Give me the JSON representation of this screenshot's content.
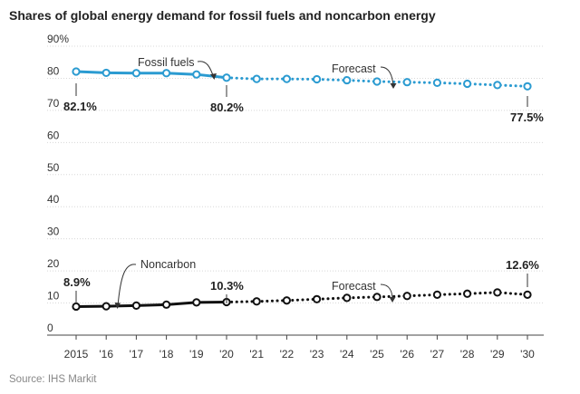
{
  "title": "Shares of global energy demand for fossil fuels and noncarbon energy",
  "source": "Source: IHS Markit",
  "chart_data": {
    "type": "line",
    "x": [
      2015,
      2016,
      2017,
      2018,
      2019,
      2020,
      2021,
      2022,
      2023,
      2024,
      2025,
      2026,
      2027,
      2028,
      2029,
      2030
    ],
    "xtick_labels": [
      "2015",
      "'16",
      "'17",
      "'18",
      "'19",
      "'20",
      "'21",
      "'22",
      "'23",
      "'24",
      "'25",
      "'26",
      "'27",
      "'28",
      "'29",
      "'30"
    ],
    "yticks": [
      0,
      10,
      20,
      30,
      40,
      50,
      60,
      70,
      80,
      90
    ],
    "ytick_labels": [
      "0",
      "10",
      "20",
      "30",
      "40",
      "50",
      "60",
      "70",
      "80",
      "90%"
    ],
    "ylim": [
      0,
      90
    ],
    "grid": true,
    "forecast_start": 2020,
    "series": [
      {
        "name": "Fossil fuels",
        "color": "#2b9bd1",
        "values": [
          82.1,
          81.7,
          81.6,
          81.6,
          81.2,
          80.2,
          79.8,
          79.8,
          79.7,
          79.4,
          79.0,
          78.8,
          78.6,
          78.3,
          77.9,
          77.5
        ]
      },
      {
        "name": "Noncarbon",
        "color": "#111111",
        "values": [
          8.9,
          9.0,
          9.2,
          9.5,
          10.2,
          10.3,
          10.5,
          10.8,
          11.2,
          11.6,
          11.9,
          12.2,
          12.6,
          12.9,
          13.3,
          12.6
        ]
      }
    ],
    "annotations": {
      "fossil_label": "Fossil fuels",
      "noncarbon_label": "Noncarbon",
      "forecast_top": "Forecast",
      "forecast_bottom": "Forecast",
      "fossil_2015": "82.1%",
      "fossil_2020": "80.2%",
      "fossil_2030": "77.5%",
      "noncarbon_2015": "8.9%",
      "noncarbon_2020": "10.3%",
      "noncarbon_2030": "12.6%"
    }
  }
}
